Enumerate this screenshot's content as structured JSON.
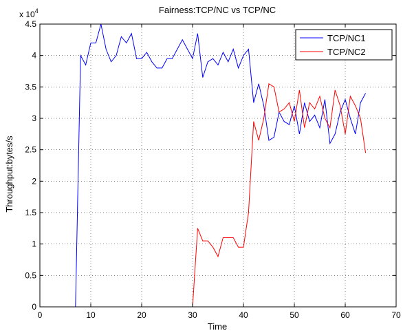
{
  "chart_data": {
    "type": "line",
    "title": "Fairness:TCP/NC vs TCP/NC",
    "xlabel": "Time",
    "ylabel": "Throughput:bytes/s",
    "y_multiplier": "x 10",
    "y_multiplier_exp": "4",
    "xlim": [
      0,
      70
    ],
    "ylim": [
      0,
      45000
    ],
    "xticks": [
      0,
      10,
      20,
      30,
      40,
      50,
      60,
      70
    ],
    "yticks": [
      0,
      5000,
      10000,
      15000,
      20000,
      25000,
      30000,
      35000,
      40000,
      45000
    ],
    "xtick_labels": [
      "0",
      "10",
      "20",
      "30",
      "40",
      "50",
      "60",
      "70"
    ],
    "ytick_labels": [
      "0",
      "0.5",
      "1",
      "1.5",
      "2",
      "2.5",
      "3",
      "3.5",
      "4",
      "4.5"
    ],
    "grid": "dotted",
    "legend_position": "top-right",
    "series": [
      {
        "name": "TCP/NC1",
        "color": "#0000ff",
        "x": [
          6,
          7,
          8,
          9,
          10,
          11,
          12,
          13,
          14,
          15,
          16,
          17,
          18,
          19,
          20,
          21,
          22,
          23,
          24,
          25,
          26,
          27,
          28,
          29,
          30,
          31,
          32,
          33,
          34,
          35,
          36,
          37,
          38,
          39,
          40,
          41,
          42,
          43,
          44,
          45,
          46,
          47,
          48,
          49,
          50,
          51,
          52,
          53,
          54,
          55,
          56,
          57,
          58,
          59,
          60,
          61,
          62,
          63,
          64
        ],
        "values": [
          0,
          0,
          40000,
          38500,
          42000,
          42000,
          45000,
          41000,
          39000,
          40000,
          43000,
          42000,
          43500,
          39500,
          39500,
          40500,
          39000,
          38000,
          38000,
          39500,
          39500,
          41000,
          42500,
          41000,
          39500,
          43500,
          36500,
          39000,
          39500,
          38500,
          40500,
          39000,
          41000,
          38000,
          40000,
          41000,
          32500,
          35500,
          32000,
          26500,
          27000,
          31000,
          29500,
          29000,
          32000,
          27500,
          32500,
          29500,
          30500,
          28500,
          33000,
          26000,
          27500,
          31000,
          33000,
          30000,
          27500,
          32500,
          34000
        ]
      },
      {
        "name": "TCP/NC2",
        "color": "#ff0000",
        "x": [
          6,
          7,
          8,
          9,
          10,
          11,
          12,
          13,
          14,
          15,
          16,
          17,
          18,
          19,
          20,
          21,
          22,
          23,
          24,
          25,
          26,
          27,
          28,
          29,
          30,
          31,
          32,
          33,
          34,
          35,
          36,
          37,
          38,
          39,
          40,
          41,
          42,
          43,
          44,
          45,
          46,
          47,
          48,
          49,
          50,
          51,
          52,
          53,
          54,
          55,
          56,
          57,
          58,
          59,
          60,
          61,
          62,
          63,
          64
        ],
        "values": [
          0,
          0,
          0,
          0,
          0,
          0,
          0,
          0,
          0,
          0,
          0,
          0,
          0,
          0,
          0,
          0,
          0,
          0,
          0,
          0,
          0,
          0,
          0,
          0,
          0,
          12500,
          10500,
          10500,
          9500,
          8000,
          11000,
          11000,
          11000,
          9500,
          9500,
          15000,
          29500,
          26500,
          30000,
          35500,
          35000,
          31000,
          31500,
          32500,
          29500,
          34500,
          28500,
          32500,
          31500,
          33500,
          30000,
          28500,
          34500,
          32000,
          27500,
          33500,
          32000,
          30000,
          24500
        ]
      }
    ]
  }
}
